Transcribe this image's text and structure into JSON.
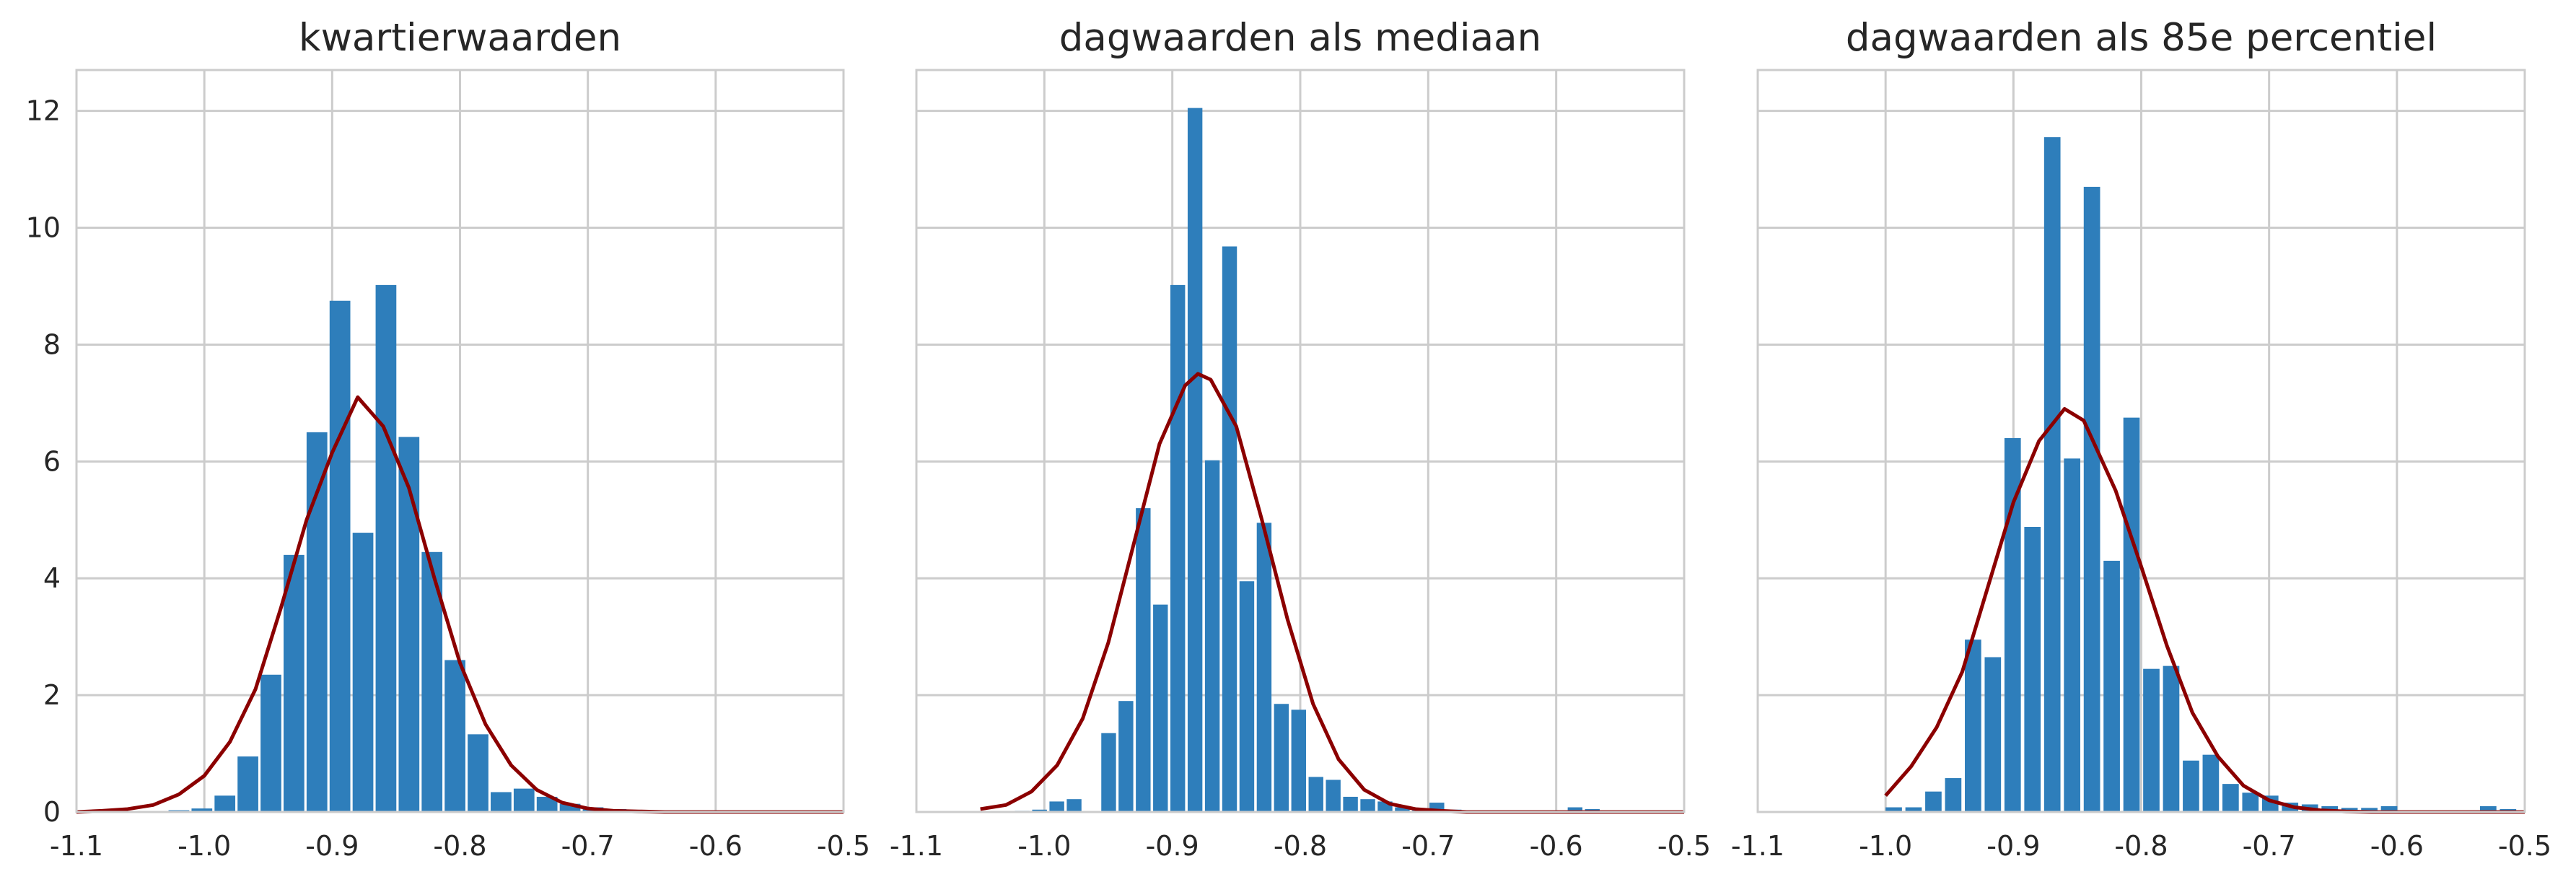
{
  "chart_data": [
    {
      "type": "bar",
      "title": "kwartierwaarden",
      "xlim": [
        -1.1,
        -0.5
      ],
      "ylim": [
        0,
        12.7
      ],
      "xticks": [
        "-1.1",
        "-1.0",
        "-0.9",
        "-0.8",
        "-0.7",
        "-0.6",
        "-0.5"
      ],
      "yticks": [
        "0",
        "2",
        "4",
        "6",
        "8",
        "10",
        "12"
      ],
      "grid": true,
      "bar_color": "#2e7ebb",
      "curve_color": "#8b0000",
      "histogram": {
        "bin_width": 0.0179,
        "bin_starts": [
          -1.1,
          -1.082,
          -1.064,
          -1.046,
          -1.028,
          -1.01,
          -0.992,
          -0.974,
          -0.956,
          -0.938,
          -0.92,
          -0.902,
          -0.884,
          -0.866,
          -0.848,
          -0.83,
          -0.812,
          -0.794,
          -0.776,
          -0.758,
          -0.74,
          -0.722,
          -0.704,
          -0.686,
          -0.668,
          -0.65,
          -0.632,
          -0.614,
          -0.596,
          -0.578,
          -0.56,
          -0.542,
          -0.524
        ],
        "density": [
          0.0,
          0.0,
          0.0,
          0.0,
          0.03,
          0.06,
          0.28,
          0.95,
          2.35,
          4.4,
          6.5,
          8.75,
          4.78,
          9.02,
          6.42,
          4.45,
          2.6,
          1.33,
          0.34,
          0.4,
          0.26,
          0.14,
          0.08,
          0.05,
          0.02,
          0.01,
          0.0,
          0.0,
          0.0,
          0.0,
          0.0,
          0.0,
          0.0
        ]
      },
      "normal_fit": {
        "x": [
          -1.1,
          -1.08,
          -1.06,
          -1.04,
          -1.02,
          -1.0,
          -0.98,
          -0.96,
          -0.94,
          -0.92,
          -0.9,
          -0.88,
          -0.86,
          -0.84,
          -0.82,
          -0.8,
          -0.78,
          -0.76,
          -0.74,
          -0.72,
          -0.7,
          -0.68,
          -0.66,
          -0.64,
          -0.62,
          -0.6,
          -0.58,
          -0.56,
          -0.54,
          -0.52,
          -0.5
        ],
        "y": [
          0.0,
          0.02,
          0.05,
          0.12,
          0.3,
          0.62,
          1.2,
          2.1,
          3.5,
          5.0,
          6.15,
          7.1,
          6.6,
          5.55,
          4.0,
          2.55,
          1.5,
          0.8,
          0.38,
          0.16,
          0.06,
          0.02,
          0.01,
          0.0,
          0.0,
          0.0,
          0.0,
          0.0,
          0.0,
          0.0,
          0.0
        ]
      }
    },
    {
      "type": "bar",
      "title": "dagwaarden als mediaan",
      "xlim": [
        -1.1,
        -0.5
      ],
      "ylim": [
        0,
        12.7
      ],
      "xticks": [
        "-1.1",
        "-1.0",
        "-0.9",
        "-0.8",
        "-0.7",
        "-0.6",
        "-0.5"
      ],
      "yticks": [],
      "grid": true,
      "bar_color": "#2e7ebb",
      "curve_color": "#8b0000",
      "histogram": {
        "bin_width": 0.0132,
        "bin_starts": [
          -1.05,
          -1.0365,
          -1.023,
          -1.0095,
          -0.996,
          -0.9825,
          -0.969,
          -0.9555,
          -0.942,
          -0.9285,
          -0.915,
          -0.9015,
          -0.888,
          -0.8745,
          -0.861,
          -0.8475,
          -0.834,
          -0.8205,
          -0.807,
          -0.7935,
          -0.78,
          -0.7665,
          -0.753,
          -0.7395,
          -0.726,
          -0.7125,
          -0.699,
          -0.6855,
          -0.672,
          -0.6585,
          -0.645,
          -0.6315,
          -0.618,
          -0.6045,
          -0.591,
          -0.5775,
          -0.564,
          -0.5505,
          -0.537,
          -0.5235,
          -0.51
        ],
        "density": [
          0.0,
          0.0,
          0.02,
          0.04,
          0.18,
          0.22,
          0.0,
          1.35,
          1.9,
          5.2,
          3.55,
          9.02,
          12.05,
          6.02,
          9.68,
          3.95,
          4.95,
          1.85,
          1.75,
          0.6,
          0.55,
          0.26,
          0.22,
          0.18,
          0.08,
          0.05,
          0.16,
          0.04,
          0.02,
          0.0,
          0.0,
          0.0,
          0.0,
          0.0,
          0.08,
          0.05,
          0.0,
          0.0,
          0.0,
          0.0,
          0.0
        ]
      },
      "normal_fit": {
        "x": [
          -1.05,
          -1.03,
          -1.01,
          -0.99,
          -0.97,
          -0.95,
          -0.93,
          -0.91,
          -0.89,
          -0.88,
          -0.87,
          -0.85,
          -0.83,
          -0.81,
          -0.79,
          -0.77,
          -0.75,
          -0.73,
          -0.71,
          -0.69,
          -0.67,
          -0.65,
          -0.63,
          -0.61,
          -0.59,
          -0.57,
          -0.55,
          -0.53,
          -0.51,
          -0.5
        ],
        "y": [
          0.05,
          0.12,
          0.35,
          0.8,
          1.6,
          2.9,
          4.6,
          6.3,
          7.3,
          7.5,
          7.4,
          6.6,
          5.0,
          3.3,
          1.85,
          0.9,
          0.38,
          0.14,
          0.05,
          0.02,
          0.0,
          0.0,
          0.0,
          0.0,
          0.0,
          0.0,
          0.0,
          0.0,
          0.0,
          0.0
        ]
      }
    },
    {
      "type": "bar",
      "title": "dagwaarden als 85e percentiel",
      "xlim": [
        -1.1,
        -0.5
      ],
      "ylim": [
        0,
        12.7
      ],
      "xticks": [
        "-1.1",
        "-1.0",
        "-0.9",
        "-0.8",
        "-0.7",
        "-0.6",
        "-0.5"
      ],
      "yticks": [],
      "grid": true,
      "bar_color": "#2e7ebb",
      "curve_color": "#8b0000",
      "histogram": {
        "bin_width": 0.0145,
        "bin_starts": [
          -1.0,
          -0.9845,
          -0.969,
          -0.9535,
          -0.938,
          -0.9225,
          -0.907,
          -0.8915,
          -0.876,
          -0.8605,
          -0.845,
          -0.8295,
          -0.814,
          -0.7985,
          -0.783,
          -0.7675,
          -0.752,
          -0.7365,
          -0.721,
          -0.7055,
          -0.69,
          -0.6745,
          -0.659,
          -0.6435,
          -0.628,
          -0.6125,
          -0.597,
          -0.5815,
          -0.566,
          -0.5505,
          -0.535,
          -0.5195
        ],
        "density": [
          0.08,
          0.08,
          0.35,
          0.58,
          2.95,
          2.65,
          6.4,
          4.88,
          11.55,
          6.05,
          10.7,
          4.3,
          6.75,
          2.45,
          2.5,
          0.88,
          0.98,
          0.48,
          0.33,
          0.28,
          0.16,
          0.13,
          0.1,
          0.07,
          0.07,
          0.1,
          0.0,
          0.0,
          0.0,
          0.0,
          0.1,
          0.05
        ]
      },
      "normal_fit": {
        "x": [
          -1.0,
          -0.98,
          -0.96,
          -0.94,
          -0.92,
          -0.9,
          -0.88,
          -0.86,
          -0.845,
          -0.82,
          -0.8,
          -0.78,
          -0.76,
          -0.74,
          -0.72,
          -0.7,
          -0.68,
          -0.66,
          -0.64,
          -0.62,
          -0.6,
          -0.58,
          -0.56,
          -0.54,
          -0.52,
          -0.5
        ],
        "y": [
          0.28,
          0.78,
          1.45,
          2.4,
          3.85,
          5.3,
          6.35,
          6.9,
          6.7,
          5.5,
          4.2,
          2.85,
          1.7,
          0.95,
          0.45,
          0.2,
          0.08,
          0.03,
          0.01,
          0.0,
          0.0,
          0.0,
          0.0,
          0.0,
          0.0,
          0.0
        ]
      }
    }
  ]
}
